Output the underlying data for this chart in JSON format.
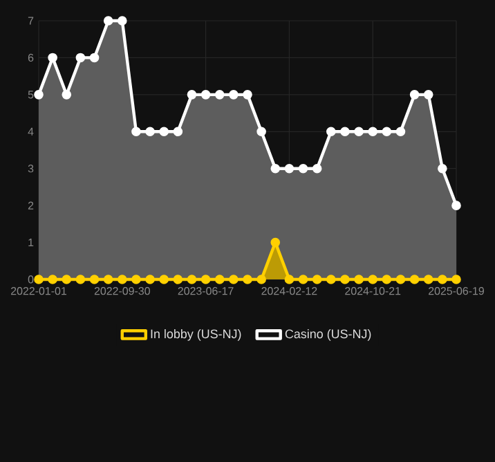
{
  "chart_data": {
    "type": "area",
    "categories": [
      "2022-01-01",
      null,
      null,
      null,
      null,
      null,
      "2022-09-30",
      null,
      null,
      null,
      null,
      null,
      "2023-06-17",
      null,
      null,
      null,
      null,
      null,
      "2024-02-12",
      null,
      null,
      null,
      null,
      null,
      "2024-10-21",
      null,
      null,
      null,
      null,
      null,
      "2025-06-19"
    ],
    "series": [
      {
        "name": "In lobby (US-NJ)",
        "color": "#ffd000",
        "values": [
          0,
          0,
          0,
          0,
          0,
          0,
          0,
          0,
          0,
          0,
          0,
          0,
          0,
          0,
          0,
          0,
          0,
          1,
          0,
          0,
          0,
          0,
          0,
          0,
          0,
          0,
          0,
          0,
          0,
          0,
          0
        ]
      },
      {
        "name": "Casino (US-NJ)",
        "color": "#ffffff",
        "values": [
          5,
          6,
          5,
          6,
          6,
          7,
          7,
          4,
          4,
          4,
          4,
          5,
          5,
          5,
          5,
          5,
          4,
          3,
          3,
          3,
          3,
          4,
          4,
          4,
          4,
          4,
          4,
          5,
          5,
          3,
          2
        ]
      }
    ],
    "ylim": [
      0,
      7
    ],
    "yticks": [
      0,
      1,
      2,
      3,
      4,
      5,
      6,
      7
    ],
    "grid": true,
    "legend": "bottom",
    "marker": "circle"
  }
}
